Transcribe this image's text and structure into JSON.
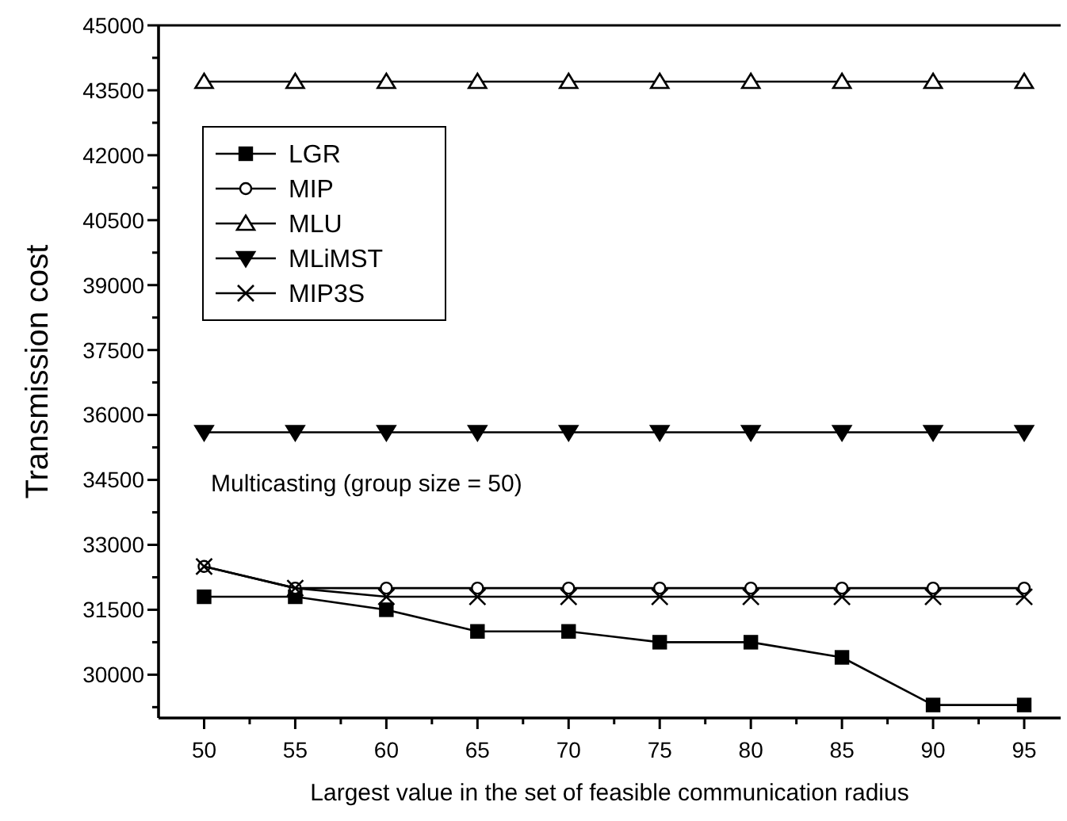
{
  "chart_data": {
    "type": "line",
    "xlabel": "Largest value in the set of feasible communication radius",
    "ylabel": "Transmission cost",
    "annotations": [
      "Multicasting (group size = 50)"
    ],
    "x": [
      50,
      55,
      60,
      65,
      70,
      75,
      80,
      85,
      90,
      95
    ],
    "xlim": [
      47.5,
      97
    ],
    "xticks": [
      50,
      {
        "value": 52.5,
        "label": null
      },
      55,
      {
        "value": 57.5,
        "label": null
      },
      60,
      {
        "value": 62.5,
        "label": null
      },
      65,
      {
        "value": 67.5,
        "label": null
      },
      70,
      {
        "value": 72.5,
        "label": null
      },
      75,
      {
        "value": 77.5,
        "label": null
      },
      80,
      {
        "value": 82.5,
        "label": null
      },
      85,
      {
        "value": 87.5,
        "label": null
      },
      90,
      {
        "value": 92.5,
        "label": null
      },
      95
    ],
    "ylim": [
      29000,
      45000
    ],
    "yticks": [
      {
        "value": 29250,
        "label": null
      },
      30000,
      {
        "value": 30750,
        "label": null
      },
      31500,
      {
        "value": 32250,
        "label": null
      },
      33000,
      {
        "value": 33750,
        "label": null
      },
      34500,
      {
        "value": 35250,
        "label": null
      },
      36000,
      {
        "value": 36750,
        "label": null
      },
      37500,
      {
        "value": 38250,
        "label": null
      },
      39000,
      {
        "value": 39750,
        "label": null
      },
      40500,
      {
        "value": 41250,
        "label": null
      },
      42000,
      {
        "value": 42750,
        "label": null
      },
      43500,
      {
        "value": 44250,
        "label": null
      },
      45000
    ],
    "grid": false,
    "legend": "top left",
    "series": [
      {
        "name": "LGR",
        "color": "#000000",
        "marker": "square",
        "values": [
          31800,
          31800,
          31500,
          31000,
          31000,
          30750,
          30750,
          30400,
          29300,
          29300
        ]
      },
      {
        "name": "MIP",
        "color": "#000000",
        "marker": "circle",
        "values": [
          32500,
          32000,
          32000,
          32000,
          32000,
          32000,
          32000,
          32000,
          32000,
          32000
        ]
      },
      {
        "name": "MLU",
        "color": "#000000",
        "marker": "triangle",
        "values": [
          43700,
          43700,
          43700,
          43700,
          43700,
          43700,
          43700,
          43700,
          43700,
          43700
        ]
      },
      {
        "name": "MLiMST",
        "color": "#000000",
        "marker": "triangle-down",
        "values": [
          35600,
          35600,
          35600,
          35600,
          35600,
          35600,
          35600,
          35600,
          35600,
          35600
        ]
      },
      {
        "name": "MIP3S",
        "color": "#000000",
        "marker": "cross",
        "values": [
          32500,
          32000,
          31800,
          31800,
          31800,
          31800,
          31800,
          31800,
          31800,
          31800
        ]
      }
    ]
  }
}
